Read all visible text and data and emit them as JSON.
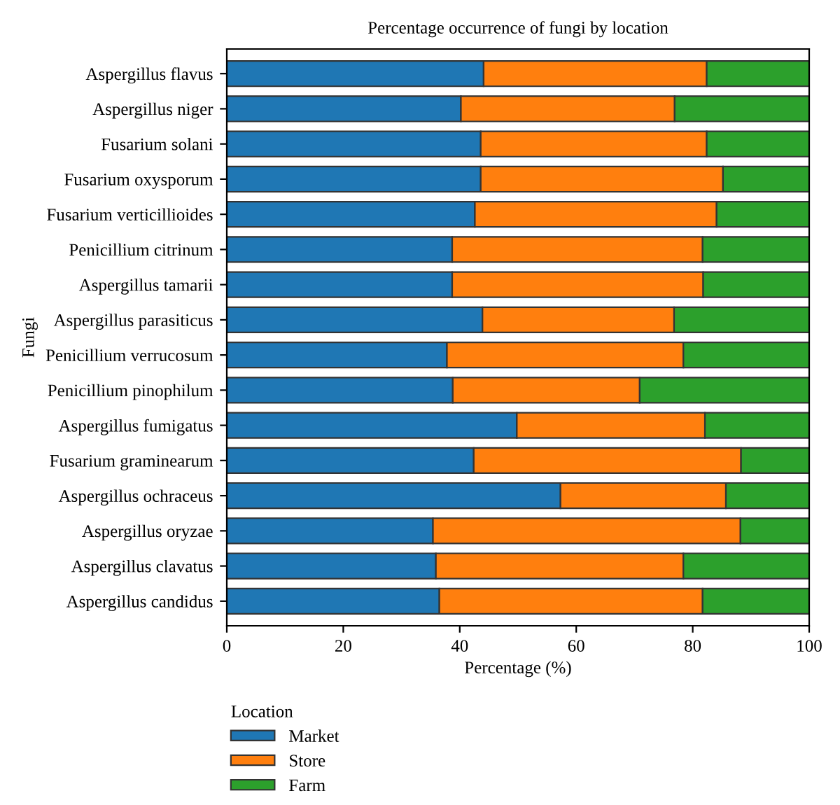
{
  "chart_data": {
    "type": "bar",
    "orientation": "horizontal",
    "stacked": true,
    "title": "Percentage occurrence of fungi by location",
    "xlabel": "Percentage (%)",
    "ylabel": "Fungi",
    "legend_title": "Location",
    "legend": "bottom left",
    "categories": [
      "Aspergillus flavus",
      "Aspergillus niger",
      "Fusarium solani",
      "Fusarium oxysporum",
      "Fusarium verticillioides",
      "Penicillium citrinum",
      "Aspergillus tamarii",
      "Aspergillus parasiticus",
      "Penicillium verrucosum",
      "Penicillium pinophilum",
      "Aspergillus fumigatus",
      "Fusarium graminearum",
      "Aspergillus ochraceus",
      "Aspergillus oryzae",
      "Aspergillus clavatus",
      "Aspergillus candidus"
    ],
    "series": [
      {
        "name": "Market",
        "color": "#1f77b4",
        "values": [
          44.1,
          40.2,
          43.6,
          43.6,
          42.6,
          38.7,
          38.7,
          43.9,
          37.8,
          38.8,
          49.8,
          42.4,
          57.3,
          35.4,
          35.9,
          36.5
        ]
      },
      {
        "name": "Store",
        "color": "#ff7f0e",
        "values": [
          38.3,
          36.7,
          38.8,
          41.6,
          41.5,
          43.0,
          43.1,
          32.9,
          40.6,
          32.1,
          32.3,
          45.9,
          28.4,
          52.8,
          42.5,
          45.2
        ]
      },
      {
        "name": "Farm",
        "color": "#2ca02c",
        "values": [
          17.6,
          23.1,
          17.6,
          14.8,
          15.9,
          18.3,
          18.2,
          23.2,
          21.6,
          29.1,
          17.9,
          11.7,
          14.3,
          11.8,
          21.6,
          18.3
        ]
      }
    ],
    "xlim": [
      0,
      100
    ],
    "xticks": [
      0,
      20,
      40,
      60,
      80,
      100
    ],
    "grid": false
  }
}
